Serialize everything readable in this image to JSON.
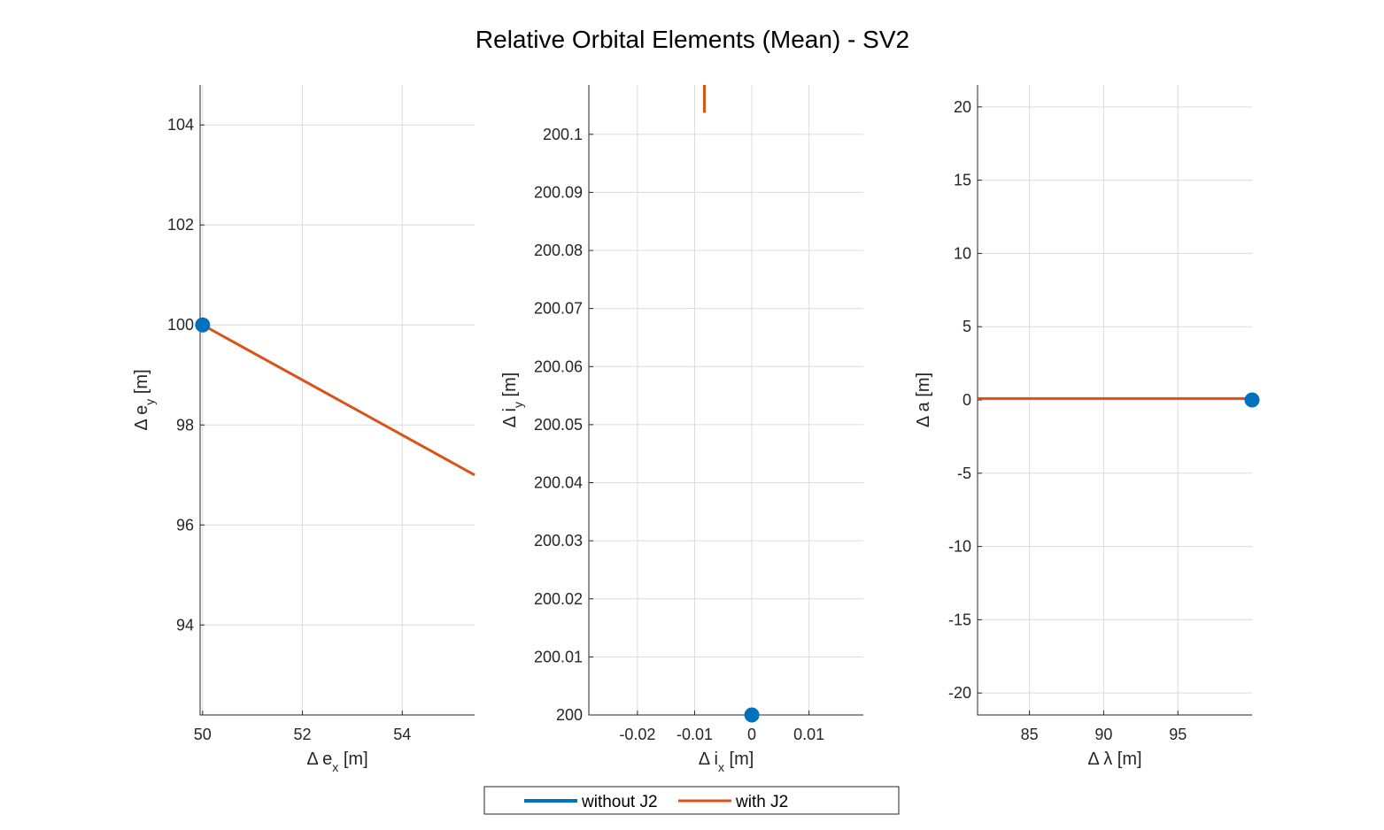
{
  "figure": {
    "title": "Relative Orbital Elements (Mean) - SV2"
  },
  "legend": {
    "placement": "bottom-center",
    "entries": [
      {
        "label": "without J2",
        "color": "#0072BD"
      },
      {
        "label": "with J2",
        "color": "#D95319"
      }
    ]
  },
  "chart_data": [
    {
      "type": "line",
      "xlabel": "Δ e_x [m]",
      "ylabel": "Δ e_y [m]",
      "xlim": [
        49.95,
        55.45
      ],
      "ylim": [
        92.2,
        104.8
      ],
      "xticks": [
        50,
        52,
        54
      ],
      "yticks": [
        94,
        96,
        98,
        100,
        102,
        104
      ],
      "xtick_labels": [
        "50",
        "52",
        "54"
      ],
      "ytick_labels": [
        "94",
        "96",
        "98",
        "100",
        "102",
        "104"
      ],
      "grid": true,
      "series": [
        {
          "name": "without J2",
          "color": "#0072BD",
          "marker_only": true,
          "x": [
            50
          ],
          "y": [
            100
          ]
        },
        {
          "name": "with J2",
          "color": "#D95319",
          "x": [
            50,
            55.45
          ],
          "y": [
            100,
            97
          ]
        }
      ]
    },
    {
      "type": "line",
      "xlabel": "Δ i_x [m]",
      "ylabel": "Δ i_y [m]",
      "xlim": [
        -0.0285,
        0.0195
      ],
      "ylim": [
        200,
        200.1085
      ],
      "xticks": [
        -0.02,
        -0.01,
        0,
        0.01
      ],
      "yticks": [
        200,
        200.01,
        200.02,
        200.03,
        200.04,
        200.05,
        200.06,
        200.07,
        200.08,
        200.09,
        200.1
      ],
      "xtick_labels": [
        "-0.02",
        "-0.01",
        "0",
        "0.01"
      ],
      "ytick_labels": [
        "200",
        "200.01",
        "200.02",
        "200.03",
        "200.04",
        "200.05",
        "200.06",
        "200.07",
        "200.08",
        "200.09",
        "200.1"
      ],
      "grid": true,
      "series": [
        {
          "name": "without J2",
          "color": "#0072BD",
          "marker_only": true,
          "x": [
            0
          ],
          "y": [
            200
          ]
        },
        {
          "name": "with J2",
          "color": "#D95319",
          "x": [
            -0.0083,
            -0.0083
          ],
          "y": [
            200.1037,
            200.1085
          ]
        }
      ]
    },
    {
      "type": "line",
      "xlabel": "Δ λ [m]",
      "ylabel": "Δ a [m]",
      "xlim": [
        81.5,
        100
      ],
      "ylim": [
        -21.5,
        21.5
      ],
      "xticks": [
        85,
        90,
        95
      ],
      "yticks": [
        -20,
        -15,
        -10,
        -5,
        0,
        5,
        10,
        15,
        20
      ],
      "xtick_labels": [
        "85",
        "90",
        "95"
      ],
      "ytick_labels": [
        "-20",
        "-15",
        "-10",
        "-5",
        "0",
        "5",
        "10",
        "15",
        "20"
      ],
      "grid": true,
      "series": [
        {
          "name": "without J2",
          "color": "#0072BD",
          "marker_only": true,
          "x": [
            100
          ],
          "y": [
            0
          ]
        },
        {
          "name": "with J2",
          "color": "#D95319",
          "x": [
            81.5,
            100
          ],
          "y": [
            0.1,
            0.1
          ]
        }
      ]
    }
  ]
}
